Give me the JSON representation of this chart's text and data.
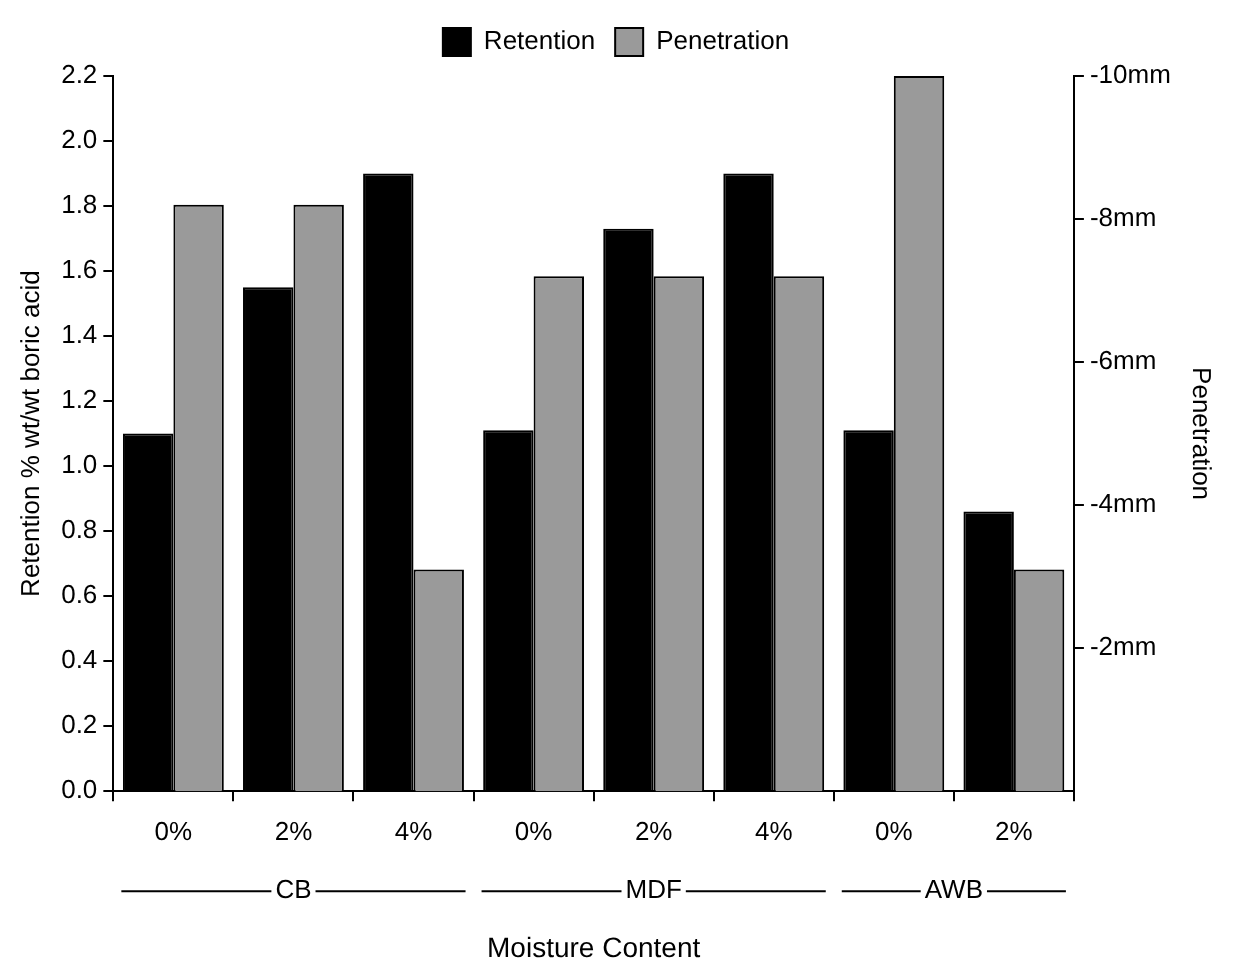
{
  "chart_data": {
    "type": "bar",
    "xlabel": "Moisture Content",
    "ylabel": "Retention % wt/wt boric acid",
    "y2label": "Penetration",
    "categories": [
      "0%",
      "2%",
      "4%",
      "0%",
      "2%",
      "4%",
      "0%",
      "2%"
    ],
    "series": [
      {
        "name": "Retention",
        "color": "#000000",
        "values": [
          1.1,
          1.55,
          1.9,
          1.11,
          1.73,
          1.9,
          1.11,
          0.86
        ]
      },
      {
        "name": "Penetration",
        "color": "#9a9a9a",
        "axis": "y2",
        "values": [
          -8.2,
          -8.2,
          -3.1,
          -7.2,
          -7.2,
          -7.2,
          -10,
          -3.1
        ]
      }
    ],
    "ylim": [
      0,
      2.2
    ],
    "yticks": [
      {
        "value": 0,
        "label": "0.0"
      },
      0.2,
      0.4,
      0.6,
      0.8,
      {
        "value": 1,
        "label": "1.0"
      },
      1.2,
      1.4,
      1.6,
      1.8,
      {
        "value": 2,
        "label": "2.0"
      },
      2.2
    ],
    "y2lim": [
      0,
      -10
    ],
    "y2ticks": [
      {
        "value": -2,
        "label": "-2mm"
      },
      {
        "value": -4,
        "label": "-4mm"
      },
      {
        "value": -6,
        "label": "-6mm"
      },
      {
        "value": -8,
        "label": "-8mm"
      },
      {
        "value": -10,
        "label": "-10mm"
      }
    ],
    "annotations": [
      "CB",
      "MDF",
      "AWB"
    ],
    "legend": "top",
    "grid": false
  }
}
